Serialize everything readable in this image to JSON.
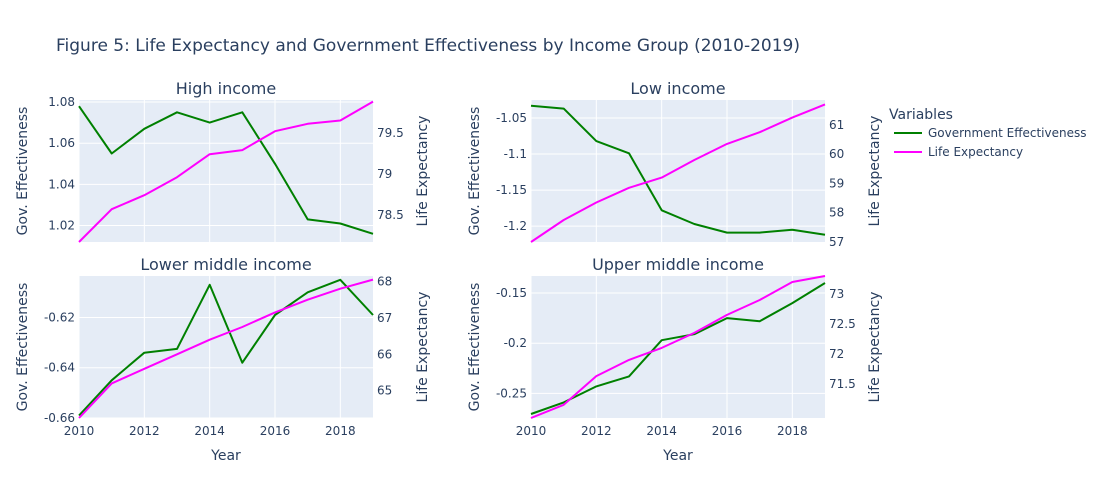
{
  "figure": {
    "title": "Figure 5: Life Expectancy and Government Effectiveness by Income Group (2010-2019)"
  },
  "legend": {
    "title": "Variables",
    "placement": "right",
    "items": [
      {
        "label": "Government Effectiveness",
        "color": "#008000"
      },
      {
        "label": "Life Expectancy",
        "color": "#ff00ff"
      }
    ]
  },
  "colors": {
    "plot_bg": "#e5ecf6",
    "grid": "#ffffff",
    "text": "#2a3f5f",
    "gov": "#008000",
    "life": "#ff00ff"
  },
  "chart_data": [
    {
      "type": "line",
      "title": "High income",
      "xlabel": "",
      "ylabel": "Gov. Effectiveness",
      "y2label": "Life Expectancy",
      "x": [
        2010,
        2011,
        2012,
        2013,
        2014,
        2015,
        2016,
        2017,
        2018,
        2019
      ],
      "xlim": [
        2010,
        2019
      ],
      "xticks": [],
      "ylim": [
        1.012,
        1.081
      ],
      "yticks": [
        1.02,
        1.04,
        1.06,
        1.08
      ],
      "yticklabels": [
        "1.02",
        "1.04",
        "1.06",
        "1.08"
      ],
      "y2lim": [
        78.17,
        79.9
      ],
      "y2ticks": [
        78.5,
        79,
        79.5
      ],
      "y2ticklabels": [
        "78.5",
        "79",
        "79.5"
      ],
      "series": [
        {
          "name": "Government Effectiveness",
          "axis": "y",
          "color": "#008000",
          "values": [
            1.078,
            1.055,
            1.067,
            1.075,
            1.07,
            1.075,
            1.05,
            1.023,
            1.021,
            1.016
          ]
        },
        {
          "name": "Life Expectancy",
          "axis": "y2",
          "color": "#ff00ff",
          "values": [
            78.17,
            78.57,
            78.74,
            78.96,
            79.24,
            79.29,
            79.52,
            79.61,
            79.65,
            79.88
          ]
        }
      ]
    },
    {
      "type": "line",
      "title": "Low income",
      "xlabel": "",
      "ylabel": "Gov. Effectiveness",
      "y2label": "Life Expectancy",
      "x": [
        2010,
        2011,
        2012,
        2013,
        2014,
        2015,
        2016,
        2017,
        2018,
        2019
      ],
      "xlim": [
        2010,
        2019
      ],
      "xticks": [],
      "ylim": [
        -1.222,
        -1.025
      ],
      "yticks": [
        -1.2,
        -1.15,
        -1.1,
        -1.05
      ],
      "yticklabels": [
        "-1.2",
        "-1.15",
        "-1.1",
        "-1.05"
      ],
      "y2lim": [
        57.0,
        61.85
      ],
      "y2ticks": [
        57,
        58,
        59,
        60,
        61
      ],
      "y2ticklabels": [
        "57",
        "58",
        "59",
        "60",
        "61"
      ],
      "series": [
        {
          "name": "Government Effectiveness",
          "axis": "y",
          "color": "#008000",
          "values": [
            -1.033,
            -1.037,
            -1.082,
            -1.099,
            -1.178,
            -1.197,
            -1.209,
            -1.209,
            -1.205,
            -1.212
          ]
        },
        {
          "name": "Life Expectancy",
          "axis": "y2",
          "color": "#ff00ff",
          "values": [
            57.0,
            57.75,
            58.35,
            58.85,
            59.2,
            59.8,
            60.35,
            60.75,
            61.25,
            61.7
          ]
        }
      ]
    },
    {
      "type": "line",
      "title": "Lower middle income",
      "xlabel": "Year",
      "ylabel": "Gov. Effectiveness",
      "y2label": "Life Expectancy",
      "x": [
        2010,
        2011,
        2012,
        2013,
        2014,
        2015,
        2016,
        2017,
        2018,
        2019
      ],
      "xlim": [
        2010,
        2019
      ],
      "xticks": [
        2010,
        2012,
        2014,
        2016,
        2018
      ],
      "xticklabels": [
        "2010",
        "2012",
        "2014",
        "2016",
        "2018"
      ],
      "ylim": [
        -0.66,
        -0.6035
      ],
      "yticks": [
        -0.66,
        -0.64,
        -0.62
      ],
      "yticklabels": [
        "-0.66",
        "-0.64",
        "-0.62"
      ],
      "y2lim": [
        64.25,
        68.15
      ],
      "y2ticks": [
        65,
        66,
        67,
        68
      ],
      "y2ticklabels": [
        "65",
        "66",
        "67",
        "68"
      ],
      "series": [
        {
          "name": "Government Effectiveness",
          "axis": "y",
          "color": "#008000",
          "values": [
            -0.659,
            -0.645,
            -0.634,
            -0.6325,
            -0.607,
            -0.638,
            -0.619,
            -0.61,
            -0.605,
            -0.619
          ]
        },
        {
          "name": "Life Expectancy",
          "axis": "y2",
          "color": "#ff00ff",
          "values": [
            64.25,
            65.2,
            65.6,
            66.0,
            66.4,
            66.75,
            67.15,
            67.5,
            67.8,
            68.05
          ]
        }
      ]
    },
    {
      "type": "line",
      "title": "Upper middle income",
      "xlabel": "Year",
      "ylabel": "Gov. Effectiveness",
      "y2label": "Life Expectancy",
      "x": [
        2010,
        2011,
        2012,
        2013,
        2014,
        2015,
        2016,
        2017,
        2018,
        2019
      ],
      "xlim": [
        2010,
        2019
      ],
      "xticks": [
        2010,
        2012,
        2014,
        2016,
        2018
      ],
      "xticklabels": [
        "2010",
        "2012",
        "2014",
        "2016",
        "2018"
      ],
      "ylim": [
        -0.2745,
        -0.133
      ],
      "yticks": [
        -0.25,
        -0.2,
        -0.15
      ],
      "yticklabels": [
        "-0.25",
        "-0.2",
        "-0.15"
      ],
      "y2lim": [
        70.93,
        73.3
      ],
      "y2ticks": [
        71.5,
        72,
        72.5,
        73
      ],
      "y2ticklabels": [
        "71.5",
        "72",
        "72.5",
        "73"
      ],
      "series": [
        {
          "name": "Government Effectiveness",
          "axis": "y",
          "color": "#008000",
          "values": [
            -0.2705,
            -0.259,
            -0.243,
            -0.233,
            -0.197,
            -0.191,
            -0.175,
            -0.178,
            -0.16,
            -0.14
          ]
        },
        {
          "name": "Life Expectancy",
          "axis": "y2",
          "color": "#ff00ff",
          "values": [
            70.93,
            71.15,
            71.63,
            71.9,
            72.1,
            72.35,
            72.65,
            72.9,
            73.2,
            73.3
          ]
        }
      ]
    }
  ]
}
